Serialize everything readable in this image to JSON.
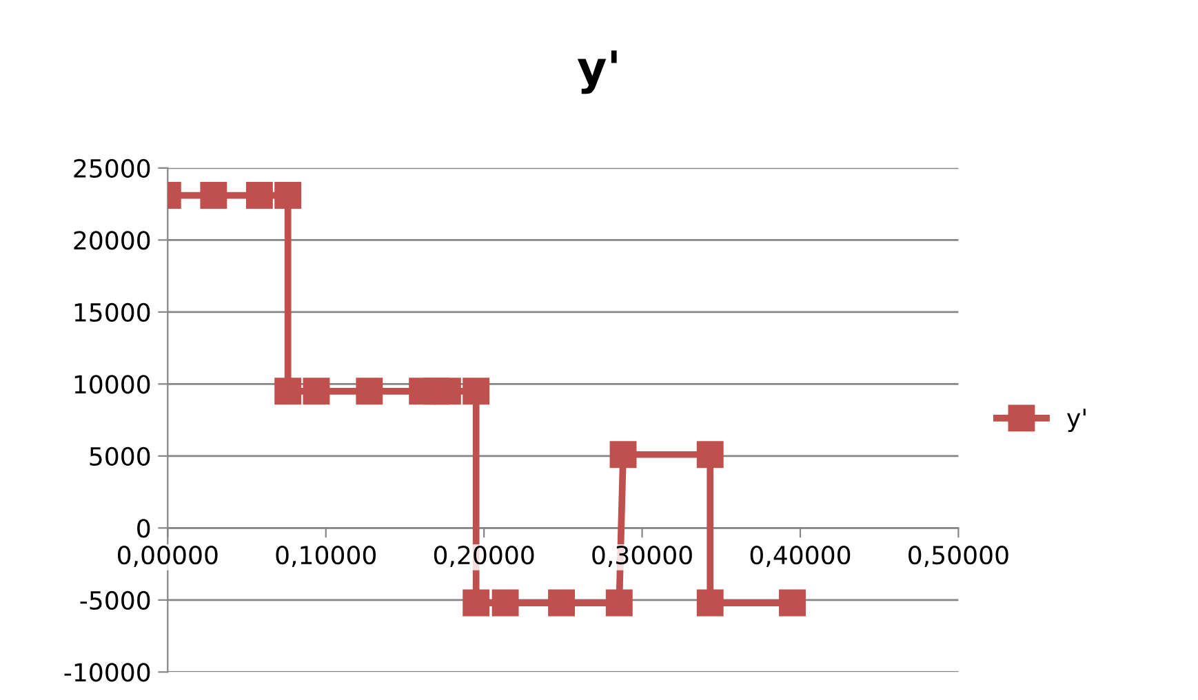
{
  "chart_data": {
    "type": "line",
    "title": "y'",
    "x": [
      0,
      0.029,
      0.058,
      0.076,
      0.076,
      0.094,
      0.1275,
      0.161,
      0.17,
      0.177,
      0.195,
      0.195,
      0.2135,
      0.249,
      0.2855,
      0.288,
      0.343,
      0.343,
      0.395
    ],
    "series": [
      {
        "name": "y'",
        "color": "#c0504d",
        "values": [
          23100,
          23100,
          23100,
          23100,
          9500,
          9500,
          9500,
          9500,
          9500,
          9500,
          9500,
          -5200,
          -5200,
          -5200,
          -5200,
          5100,
          5100,
          -5200,
          -5200
        ]
      }
    ],
    "xlim": [
      0,
      0.5
    ],
    "ylim": [
      -10000,
      25000
    ],
    "xticks": [
      {
        "value": 0,
        "label": "0,00000"
      },
      {
        "value": 0.1,
        "label": "0,10000"
      },
      {
        "value": 0.2,
        "label": "0,20000"
      },
      {
        "value": 0.3,
        "label": "0,30000"
      },
      {
        "value": 0.4,
        "label": "0,40000"
      },
      {
        "value": 0.5,
        "label": "0,50000"
      }
    ],
    "yticks": [
      -10000,
      -5000,
      0,
      5000,
      10000,
      15000,
      20000,
      25000
    ],
    "grid": "y",
    "legend": "right",
    "marker": "square",
    "line_style": "solid"
  }
}
